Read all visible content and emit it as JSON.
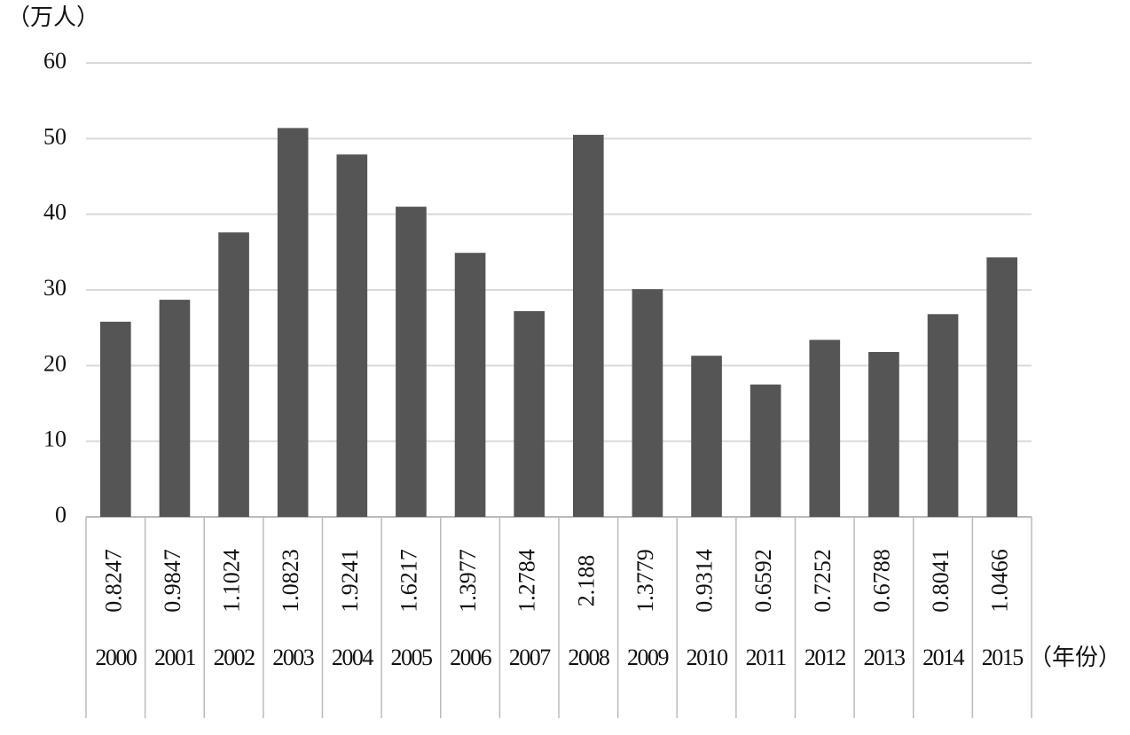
{
  "chart_data": {
    "type": "bar",
    "y_unit": "（万人）",
    "x_unit": "（年份）",
    "categories": [
      "2000",
      "2001",
      "2002",
      "2003",
      "2004",
      "2005",
      "2006",
      "2007",
      "2008",
      "2009",
      "2010",
      "2011",
      "2012",
      "2013",
      "2014",
      "2015"
    ],
    "values": [
      25.8,
      28.7,
      37.6,
      51.4,
      47.9,
      41.0,
      34.9,
      27.2,
      50.5,
      30.1,
      21.3,
      17.5,
      23.4,
      21.8,
      26.8,
      34.3
    ],
    "table_row": [
      "0.8247",
      "0.9847",
      "1.1024",
      "1.0823",
      "1.9241",
      "1.6217",
      "1.3977",
      "1.2784",
      "2.188",
      "1.3779",
      "0.9314",
      "0.6592",
      "0.7252",
      "0.6788",
      "0.8041",
      "1.0466"
    ],
    "color": "#555555",
    "ylim": [
      0,
      60
    ],
    "yticks": [
      0,
      10,
      20,
      30,
      40,
      50,
      60
    ],
    "grid": true
  }
}
